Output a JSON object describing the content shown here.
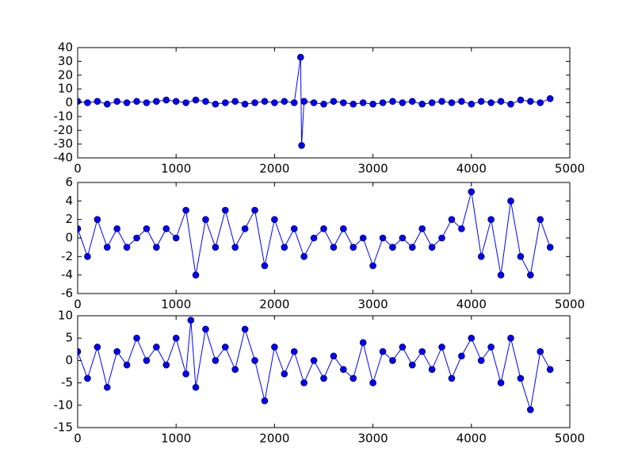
{
  "chart_data": [
    {
      "type": "line",
      "marker": "circle",
      "marker_edge_color": "#000000",
      "x": [
        0,
        100,
        200,
        300,
        400,
        500,
        600,
        700,
        800,
        900,
        1000,
        1100,
        1200,
        1300,
        1400,
        1500,
        1600,
        1700,
        1800,
        1900,
        2000,
        2100,
        2200,
        2265,
        2275,
        2300,
        2400,
        2500,
        2600,
        2700,
        2800,
        2900,
        3000,
        3100,
        3200,
        3300,
        3400,
        3500,
        3600,
        3700,
        3800,
        3900,
        4000,
        4100,
        4200,
        4300,
        4400,
        4500,
        4600,
        4700,
        4800
      ],
      "series": [
        {
          "color": "#0000ff",
          "values": [
            1,
            0,
            1,
            -1,
            1,
            0,
            1,
            0,
            1,
            2,
            1,
            0,
            2,
            1,
            -1,
            0,
            1,
            -1,
            0,
            1,
            0,
            1,
            0,
            33,
            -31,
            1,
            0,
            -1,
            1,
            0,
            -1,
            0,
            -1,
            0,
            1,
            0,
            1,
            -1,
            0,
            1,
            0,
            1,
            -1,
            1,
            0,
            1,
            -1,
            2,
            1,
            0,
            3
          ]
        }
      ],
      "xlim": [
        0,
        5000
      ],
      "xticks": [
        0,
        1000,
        2000,
        3000,
        4000,
        5000
      ],
      "ylim": [
        -40,
        40
      ],
      "yticks": [
        -40,
        -30,
        -20,
        -10,
        0,
        10,
        20,
        30,
        40
      ]
    },
    {
      "type": "line",
      "marker": "circle",
      "marker_edge_color": "#000000",
      "x": [
        0,
        100,
        200,
        300,
        400,
        500,
        600,
        700,
        800,
        900,
        1000,
        1100,
        1200,
        1300,
        1400,
        1500,
        1600,
        1700,
        1800,
        1900,
        2000,
        2100,
        2200,
        2300,
        2400,
        2500,
        2600,
        2700,
        2800,
        2900,
        3000,
        3100,
        3200,
        3300,
        3400,
        3500,
        3600,
        3700,
        3800,
        3900,
        4000,
        4100,
        4200,
        4300,
        4400,
        4500,
        4600,
        4700,
        4800
      ],
      "series": [
        {
          "color": "#0000ff",
          "values": [
            1,
            -2,
            2,
            -1,
            1,
            -1,
            0,
            1,
            -1,
            1,
            0,
            3,
            -4,
            2,
            -1,
            3,
            -1,
            1,
            3,
            -3,
            2,
            -1,
            1,
            -2,
            0,
            1,
            -1,
            1,
            -1,
            0,
            -3,
            0,
            -1,
            0,
            -1,
            1,
            -1,
            0,
            2,
            1,
            5,
            -2,
            2,
            -4,
            4,
            -2,
            -4,
            2,
            -1
          ]
        }
      ],
      "xlim": [
        0,
        5000
      ],
      "xticks": [
        0,
        1000,
        2000,
        3000,
        4000,
        5000
      ],
      "ylim": [
        -6,
        6
      ],
      "yticks": [
        -6,
        -4,
        -2,
        0,
        2,
        4,
        6
      ]
    },
    {
      "type": "line",
      "marker": "circle",
      "marker_edge_color": "#000000",
      "x": [
        0,
        100,
        200,
        300,
        400,
        500,
        600,
        700,
        800,
        900,
        1000,
        1100,
        1150,
        1200,
        1300,
        1400,
        1500,
        1600,
        1700,
        1800,
        1900,
        2000,
        2100,
        2200,
        2300,
        2400,
        2500,
        2600,
        2700,
        2800,
        2900,
        3000,
        3100,
        3200,
        3300,
        3400,
        3500,
        3600,
        3700,
        3800,
        3900,
        4000,
        4100,
        4200,
        4300,
        4400,
        4500,
        4600,
        4700,
        4800
      ],
      "series": [
        {
          "color": "#0000ff",
          "values": [
            2,
            -4,
            3,
            -6,
            2,
            -1,
            5,
            0,
            3,
            -1,
            5,
            -3,
            9,
            -6,
            7,
            0,
            3,
            -2,
            7,
            0,
            -9,
            3,
            -3,
            2,
            -5,
            0,
            -4,
            1,
            -2,
            -4,
            4,
            -5,
            2,
            0,
            3,
            -1,
            2,
            -2,
            3,
            -4,
            1,
            5,
            0,
            3,
            -5,
            5,
            -4,
            -11,
            2,
            -2
          ]
        }
      ],
      "xlim": [
        0,
        5000
      ],
      "xticks": [
        0,
        1000,
        2000,
        3000,
        4000,
        5000
      ],
      "ylim": [
        -15,
        10
      ],
      "yticks": [
        -15,
        -10,
        -5,
        0,
        5,
        10
      ]
    }
  ]
}
